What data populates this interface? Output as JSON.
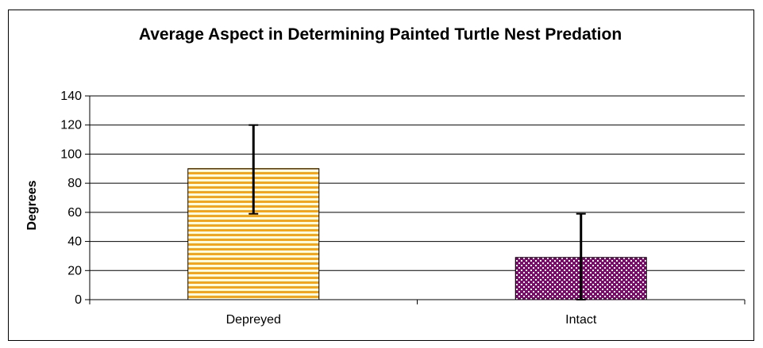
{
  "chart_data": {
    "type": "bar",
    "title": "Average Aspect in Determining Painted Turtle Nest Predation",
    "xlabel": "",
    "ylabel": "Degrees",
    "categories": [
      "Depreyed",
      "Intact"
    ],
    "values": [
      90,
      29
    ],
    "error_bars": [
      {
        "low": 59,
        "high": 120
      },
      {
        "low": 0,
        "high": 59
      }
    ],
    "ylim": [
      0,
      140
    ],
    "yticks": [
      0,
      20,
      40,
      60,
      80,
      100,
      120,
      140
    ],
    "grid": true,
    "legend": "none",
    "bar_styles": [
      {
        "pattern": "horizontal-stripes",
        "fill": "#FFA500",
        "stripe": "#FFFFFF",
        "stroke": "#000000"
      },
      {
        "pattern": "checker-dots",
        "fill": "#7B0A6B",
        "dot": "#FFFFFF",
        "stroke": "#000000"
      }
    ]
  }
}
